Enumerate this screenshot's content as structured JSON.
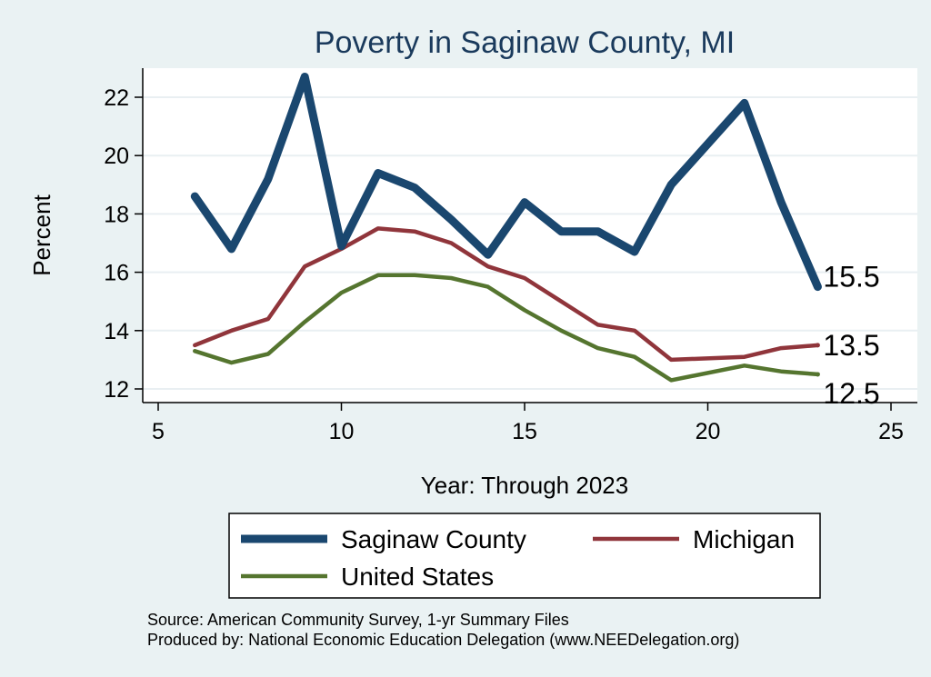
{
  "chart_data": {
    "type": "line",
    "title": "Poverty in Saginaw County, MI",
    "xlabel": "Year: Through 2023",
    "ylabel": "Percent",
    "xlim": [
      5,
      25
    ],
    "ylim": [
      12,
      23
    ],
    "xticks": [
      5,
      10,
      15,
      20,
      25
    ],
    "yticks": [
      12,
      14,
      16,
      18,
      20,
      22
    ],
    "grid": true,
    "legend_position": "bottom",
    "x": [
      6,
      7,
      8,
      9,
      10,
      11,
      12,
      13,
      14,
      15,
      16,
      17,
      18,
      19,
      21,
      22,
      23
    ],
    "series": [
      {
        "name": "Saginaw County",
        "color": "#1a476f",
        "values": [
          18.6,
          16.8,
          19.2,
          22.7,
          16.9,
          19.4,
          18.9,
          17.8,
          16.6,
          18.4,
          17.4,
          17.4,
          16.7,
          19.0,
          21.8,
          18.4,
          15.5
        ],
        "end_label": "15.5"
      },
      {
        "name": "Michigan",
        "color": "#90353b",
        "values": [
          13.5,
          14.0,
          14.4,
          16.2,
          16.8,
          17.5,
          17.4,
          17.0,
          16.2,
          15.8,
          15.0,
          14.2,
          14.0,
          13.0,
          13.1,
          13.4,
          13.5
        ],
        "end_label": "13.5"
      },
      {
        "name": "United States",
        "color": "#55752f",
        "values": [
          13.3,
          12.9,
          13.2,
          14.3,
          15.3,
          15.9,
          15.9,
          15.8,
          15.5,
          14.7,
          14.0,
          13.4,
          13.1,
          12.3,
          12.8,
          12.6,
          12.5
        ],
        "end_label": "12.5"
      }
    ],
    "notes": [
      "Source: American Community Survey, 1-yr Summary Files",
      "Produced by: National Economic Education Delegation (www.NEEDelegation.org)"
    ]
  }
}
